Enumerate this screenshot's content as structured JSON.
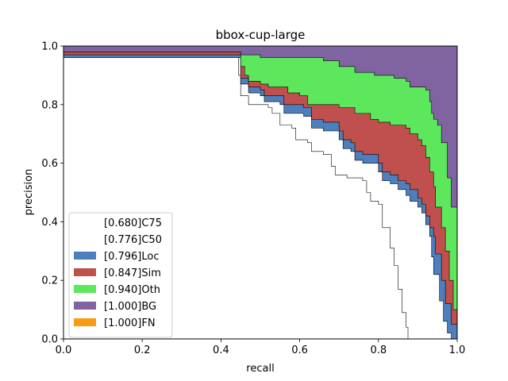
{
  "chart_data": {
    "type": "area",
    "title": "bbox-cup-large",
    "xlabel": "recall",
    "ylabel": "precision",
    "xlim": [
      0,
      1
    ],
    "ylim": [
      0,
      1
    ],
    "xticks": [
      "0.0",
      "0.2",
      "0.4",
      "0.6",
      "0.8",
      "1.0"
    ],
    "yticks": [
      "0.0",
      "0.2",
      "0.4",
      "0.6",
      "0.8",
      "1.0"
    ],
    "legend_position": "lower-left",
    "grid": false,
    "series": [
      {
        "name": "[0.680]C75",
        "color": "#ffffff",
        "points": [
          [
            0,
            0.96
          ],
          [
            0.44,
            0.96
          ],
          [
            0.445,
            0.9
          ],
          [
            0.45,
            0.83
          ],
          [
            0.47,
            0.8
          ],
          [
            0.52,
            0.79
          ],
          [
            0.53,
            0.77
          ],
          [
            0.55,
            0.73
          ],
          [
            0.58,
            0.72
          ],
          [
            0.59,
            0.68
          ],
          [
            0.62,
            0.67
          ],
          [
            0.63,
            0.64
          ],
          [
            0.66,
            0.63
          ],
          [
            0.68,
            0.59
          ],
          [
            0.69,
            0.56
          ],
          [
            0.72,
            0.55
          ],
          [
            0.76,
            0.54
          ],
          [
            0.77,
            0.5
          ],
          [
            0.78,
            0.47
          ],
          [
            0.8,
            0.46
          ],
          [
            0.81,
            0.38
          ],
          [
            0.83,
            0.31
          ],
          [
            0.84,
            0.25
          ],
          [
            0.85,
            0.17
          ],
          [
            0.86,
            0.09
          ],
          [
            0.87,
            0.04
          ],
          [
            0.875,
            0.0
          ]
        ]
      },
      {
        "name": "[0.776]C50",
        "color": "#ffffff",
        "points": [
          [
            0,
            0.96
          ],
          [
            0.44,
            0.96
          ],
          [
            0.45,
            0.87
          ],
          [
            0.47,
            0.84
          ],
          [
            0.5,
            0.83
          ],
          [
            0.51,
            0.81
          ],
          [
            0.55,
            0.8
          ],
          [
            0.56,
            0.77
          ],
          [
            0.61,
            0.76
          ],
          [
            0.63,
            0.72
          ],
          [
            0.66,
            0.71
          ],
          [
            0.7,
            0.68
          ],
          [
            0.71,
            0.65
          ],
          [
            0.73,
            0.64
          ],
          [
            0.74,
            0.61
          ],
          [
            0.76,
            0.6
          ],
          [
            0.8,
            0.57
          ],
          [
            0.81,
            0.54
          ],
          [
            0.83,
            0.53
          ],
          [
            0.85,
            0.51
          ],
          [
            0.87,
            0.49
          ],
          [
            0.88,
            0.47
          ],
          [
            0.9,
            0.45
          ],
          [
            0.91,
            0.43
          ],
          [
            0.92,
            0.39
          ],
          [
            0.93,
            0.35
          ],
          [
            0.935,
            0.28
          ],
          [
            0.94,
            0.22
          ],
          [
            0.955,
            0.13
          ],
          [
            0.965,
            0.06
          ],
          [
            0.975,
            0.02
          ],
          [
            0.985,
            0.0
          ]
        ]
      },
      {
        "name": "[0.796]Loc",
        "color": "#4c7fbc",
        "points": [
          [
            0,
            0.97
          ],
          [
            0.44,
            0.97
          ],
          [
            0.45,
            0.89
          ],
          [
            0.47,
            0.86
          ],
          [
            0.5,
            0.85
          ],
          [
            0.51,
            0.83
          ],
          [
            0.55,
            0.83
          ],
          [
            0.56,
            0.8
          ],
          [
            0.61,
            0.79
          ],
          [
            0.63,
            0.75
          ],
          [
            0.66,
            0.74
          ],
          [
            0.7,
            0.71
          ],
          [
            0.71,
            0.68
          ],
          [
            0.73,
            0.67
          ],
          [
            0.74,
            0.64
          ],
          [
            0.76,
            0.63
          ],
          [
            0.8,
            0.6
          ],
          [
            0.81,
            0.57
          ],
          [
            0.83,
            0.56
          ],
          [
            0.85,
            0.54
          ],
          [
            0.87,
            0.53
          ],
          [
            0.88,
            0.51
          ],
          [
            0.9,
            0.48
          ],
          [
            0.91,
            0.46
          ],
          [
            0.92,
            0.42
          ],
          [
            0.93,
            0.38
          ],
          [
            0.94,
            0.35
          ],
          [
            0.945,
            0.29
          ],
          [
            0.96,
            0.2
          ],
          [
            0.97,
            0.12
          ],
          [
            0.985,
            0.05
          ],
          [
            1.0,
            0.02
          ]
        ]
      },
      {
        "name": "[0.847]Sim",
        "color": "#c0504d",
        "points": [
          [
            0,
            0.98
          ],
          [
            0.44,
            0.98
          ],
          [
            0.45,
            0.93
          ],
          [
            0.46,
            0.9
          ],
          [
            0.47,
            0.88
          ],
          [
            0.5,
            0.87
          ],
          [
            0.52,
            0.86
          ],
          [
            0.55,
            0.86
          ],
          [
            0.57,
            0.84
          ],
          [
            0.6,
            0.83
          ],
          [
            0.62,
            0.8
          ],
          [
            0.7,
            0.79
          ],
          [
            0.74,
            0.77
          ],
          [
            0.78,
            0.75
          ],
          [
            0.8,
            0.74
          ],
          [
            0.83,
            0.73
          ],
          [
            0.87,
            0.72
          ],
          [
            0.88,
            0.7
          ],
          [
            0.9,
            0.68
          ],
          [
            0.91,
            0.66
          ],
          [
            0.92,
            0.62
          ],
          [
            0.93,
            0.57
          ],
          [
            0.94,
            0.52
          ],
          [
            0.945,
            0.45
          ],
          [
            0.96,
            0.38
          ],
          [
            0.97,
            0.3
          ],
          [
            0.98,
            0.2
          ],
          [
            0.99,
            0.1
          ],
          [
            1.0,
            0.05
          ]
        ]
      },
      {
        "name": "[0.940]Oth",
        "color": "#5de75d",
        "points": [
          [
            0,
            0.98
          ],
          [
            0.44,
            0.98
          ],
          [
            0.45,
            0.97
          ],
          [
            0.48,
            0.97
          ],
          [
            0.5,
            0.96
          ],
          [
            0.55,
            0.96
          ],
          [
            0.6,
            0.96
          ],
          [
            0.66,
            0.95
          ],
          [
            0.7,
            0.93
          ],
          [
            0.74,
            0.91
          ],
          [
            0.79,
            0.9
          ],
          [
            0.84,
            0.89
          ],
          [
            0.87,
            0.88
          ],
          [
            0.88,
            0.86
          ],
          [
            0.92,
            0.85
          ],
          [
            0.93,
            0.81
          ],
          [
            0.935,
            0.77
          ],
          [
            0.94,
            0.75
          ],
          [
            0.95,
            0.73
          ],
          [
            0.96,
            0.67
          ],
          [
            0.975,
            0.55
          ],
          [
            0.985,
            0.45
          ],
          [
            1.0,
            0.3
          ]
        ]
      },
      {
        "name": "[1.000]BG",
        "color": "#8064a2",
        "points": [
          [
            0,
            1.0
          ],
          [
            1.0,
            1.0
          ]
        ]
      },
      {
        "name": "[1.000]FN",
        "color": "#f79c13",
        "points": [
          [
            0,
            1.0
          ],
          [
            1.0,
            1.0
          ]
        ]
      }
    ]
  }
}
